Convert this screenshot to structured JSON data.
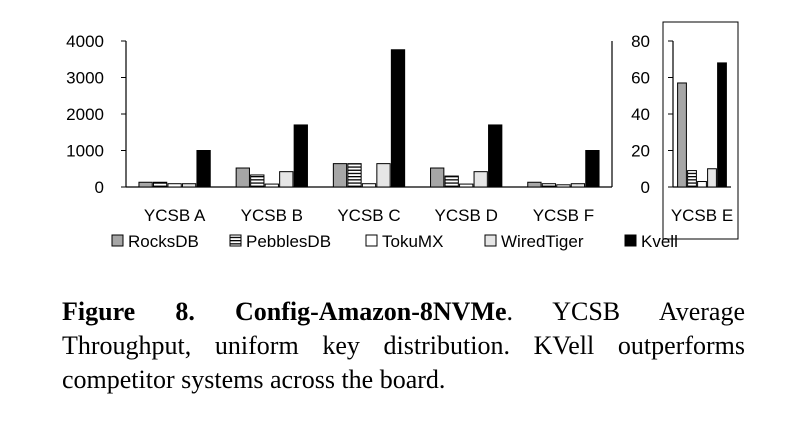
{
  "chart_data": [
    {
      "type": "bar",
      "categories": [
        "YCSB A",
        "YCSB B",
        "YCSB C",
        "YCSB D",
        "YCSB F"
      ],
      "series": [
        {
          "name": "RocksDB",
          "values": [
            130,
            520,
            640,
            520,
            130
          ]
        },
        {
          "name": "PebblesDB",
          "values": [
            130,
            330,
            640,
            300,
            90
          ]
        },
        {
          "name": "TokuMX",
          "values": [
            90,
            80,
            90,
            80,
            60
          ]
        },
        {
          "name": "WiredTiger",
          "values": [
            90,
            420,
            640,
            420,
            90
          ]
        },
        {
          "name": "Kvell",
          "values": [
            1000,
            1700,
            3760,
            1700,
            1000
          ]
        }
      ],
      "yticks": [
        "0",
        "1000",
        "2000",
        "3000",
        "4000"
      ],
      "ylim": [
        0,
        4000
      ],
      "grid": false
    },
    {
      "type": "bar",
      "categories": [
        "YCSB E"
      ],
      "series": [
        {
          "name": "RocksDB",
          "values": [
            57
          ]
        },
        {
          "name": "PebblesDB",
          "values": [
            9
          ]
        },
        {
          "name": "TokuMX",
          "values": [
            3
          ]
        },
        {
          "name": "WiredTiger",
          "values": [
            10
          ]
        },
        {
          "name": "Kvell",
          "values": [
            68
          ]
        }
      ],
      "yticks": [
        "0",
        "20",
        "40",
        "60",
        "80"
      ],
      "ylim": [
        0,
        80
      ],
      "grid": false
    }
  ],
  "legend": {
    "placement": "bottom",
    "items": [
      {
        "label": "RocksDB",
        "fill": "#a6a6a6"
      },
      {
        "label": "PebblesDB",
        "fill": "pattern-horizontal-stripes"
      },
      {
        "label": "TokuMX",
        "fill": "#ffffff"
      },
      {
        "label": "WiredTiger",
        "fill": "#e6e6e6"
      },
      {
        "label": "Kvell",
        "fill": "#000000"
      }
    ]
  },
  "colors": {
    "RocksDB": "#a6a6a6",
    "PebblesDB": "#ffffff",
    "TokuMX": "#ffffff",
    "WiredTiger": "#e6e6e6",
    "Kvell": "#000000"
  },
  "caption": {
    "label": "Figure 8.",
    "title": "Config-Amazon-8NVMe",
    "text": ". YCSB Average Throughput, uniform key distribution. KVell outperforms competitor systems across the board."
  }
}
